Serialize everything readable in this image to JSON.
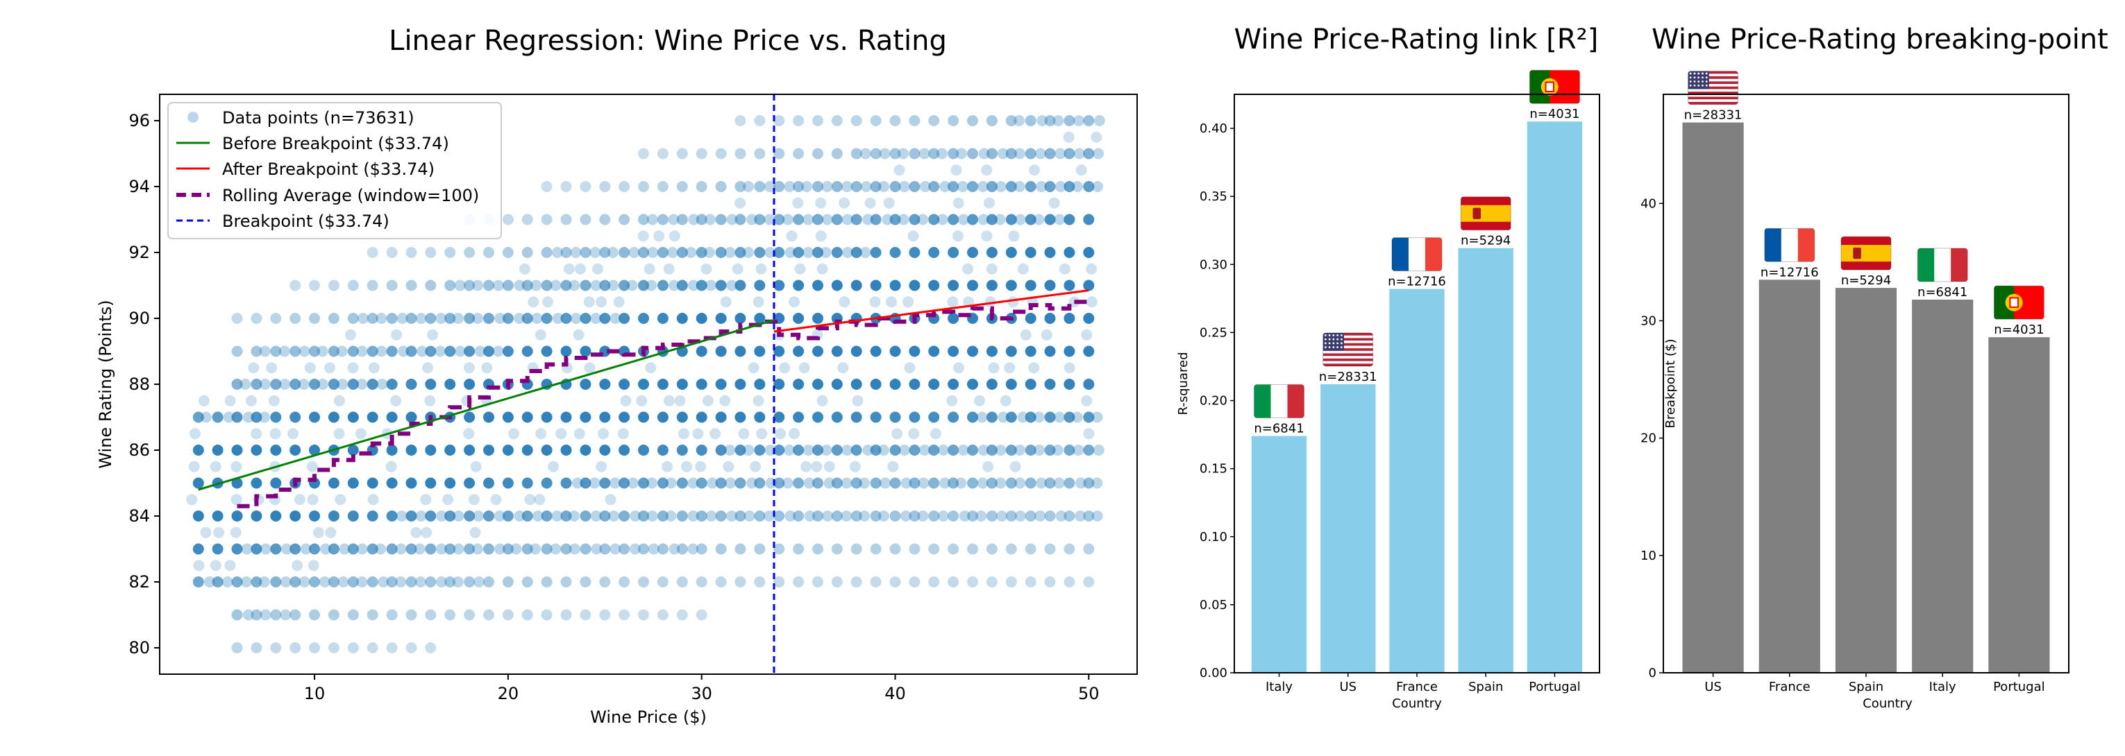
{
  "chart_data": [
    {
      "type": "scatter",
      "title": "Linear Regression: Wine Price vs. Rating",
      "xlabel": "Wine Price ($)",
      "ylabel": "Wine Rating (Points)",
      "xlim": [
        2,
        52.5
      ],
      "ylim": [
        79.2,
        96.8
      ],
      "xticks": [
        10,
        20,
        30,
        40,
        50
      ],
      "yticks": [
        80,
        82,
        84,
        86,
        88,
        90,
        92,
        94,
        96
      ],
      "grid": false,
      "legend_position": "top-left",
      "breakpoint": 33.74,
      "legend": [
        {
          "label": "Data points (n=73631)",
          "kind": "marker",
          "color": "#1f77b4"
        },
        {
          "label": "Before Breakpoint ($33.74)",
          "kind": "line",
          "color": "#008000"
        },
        {
          "label": "After Breakpoint ($33.74)",
          "kind": "line",
          "color": "#ff0000"
        },
        {
          "label": "Rolling Average (window=100)",
          "kind": "dashed",
          "color": "#800080"
        },
        {
          "label": "Breakpoint ($33.74)",
          "kind": "dashed",
          "color": "#0000ff"
        }
      ],
      "series": [
        {
          "name": "Before Breakpoint ($33.74)",
          "x": [
            4,
            33.74
          ],
          "y": [
            84.8,
            89.95
          ],
          "color": "#008000"
        },
        {
          "name": "After Breakpoint ($33.74)",
          "x": [
            33.74,
            50
          ],
          "y": [
            89.6,
            90.85
          ],
          "color": "#ff0000"
        },
        {
          "name": "Rolling Average (window=100)",
          "color": "#800080",
          "x": [
            6,
            7,
            8,
            9,
            10,
            11,
            12,
            13,
            14,
            15,
            16,
            17,
            18,
            19,
            20,
            21,
            22,
            23,
            24,
            25,
            26,
            27,
            28,
            29,
            30,
            31,
            32,
            33,
            34,
            35,
            36,
            37,
            38,
            39,
            40,
            41,
            42,
            43,
            44,
            45,
            46,
            47,
            48,
            49,
            50
          ],
          "y": [
            84.3,
            84.6,
            84.8,
            85.1,
            85.4,
            85.7,
            85.9,
            86.2,
            86.5,
            86.8,
            87.0,
            87.3,
            87.6,
            87.9,
            88.1,
            88.4,
            88.6,
            88.8,
            88.9,
            89.0,
            88.9,
            89.1,
            89.2,
            89.3,
            89.4,
            89.6,
            89.8,
            89.9,
            89.5,
            89.4,
            89.7,
            89.9,
            89.8,
            90.0,
            89.9,
            90.1,
            90.2,
            90.1,
            90.3,
            90.0,
            90.2,
            90.4,
            90.3,
            90.5,
            90.6
          ]
        }
      ]
    },
    {
      "type": "bar",
      "title": "Wine Price-Rating link [R²]",
      "xlabel": "Country",
      "ylabel": "R-squared",
      "ylim": [
        0,
        0.425
      ],
      "yticks": [
        0.0,
        0.05,
        0.1,
        0.15,
        0.2,
        0.25,
        0.3,
        0.35,
        0.4
      ],
      "color": "#87ceeb",
      "categories": [
        "Italy",
        "US",
        "France",
        "Spain",
        "Portugal"
      ],
      "values": [
        0.174,
        0.212,
        0.282,
        0.312,
        0.405
      ],
      "labels": [
        "n=6841",
        "n=28331",
        "n=12716",
        "n=5294",
        "n=4031"
      ],
      "flag_icons": [
        "italy-flag-icon",
        "us-flag-icon",
        "france-flag-icon",
        "spain-flag-icon",
        "portugal-flag-icon"
      ]
    },
    {
      "type": "bar",
      "title": "Wine Price-Rating breaking-point",
      "xlabel": "Country",
      "ylabel": "Breakpoint ($)",
      "ylim": [
        0,
        49.3
      ],
      "yticks": [
        0,
        10,
        20,
        30,
        40
      ],
      "color": "#808080",
      "categories": [
        "US",
        "France",
        "Spain",
        "Italy",
        "Portugal"
      ],
      "values": [
        46.9,
        33.5,
        32.8,
        31.8,
        28.6
      ],
      "labels": [
        "n=28331",
        "n=12716",
        "n=5294",
        "n=6841",
        "n=4031"
      ],
      "flag_icons": [
        "us-flag-icon",
        "france-flag-icon",
        "spain-flag-icon",
        "italy-flag-icon",
        "portugal-flag-icon"
      ]
    }
  ]
}
